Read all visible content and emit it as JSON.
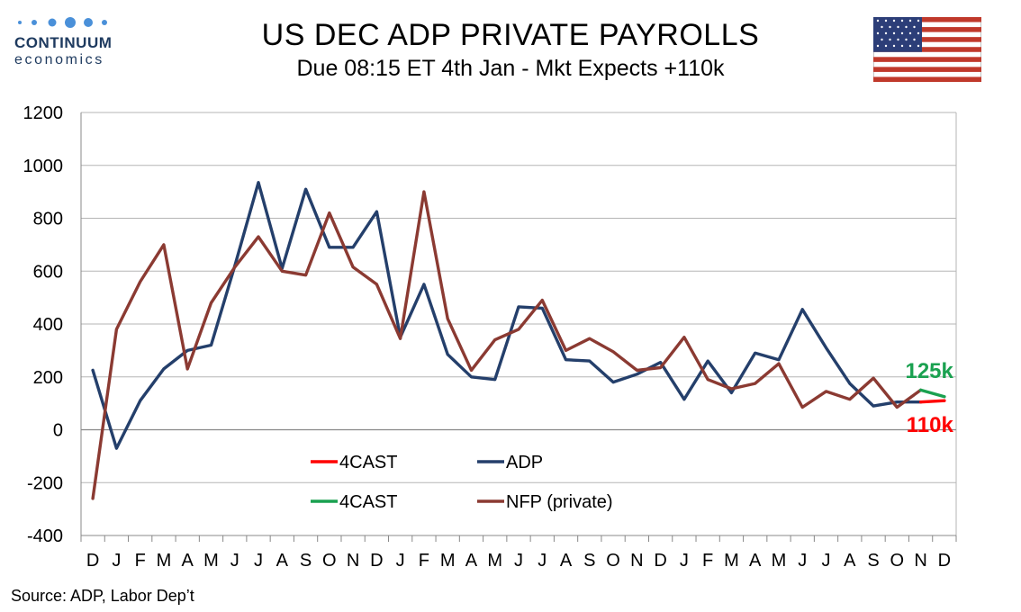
{
  "logo": {
    "name": "CONTINUUM",
    "sub": "economics"
  },
  "title": "US DEC ADP PRIVATE PAYROLLS",
  "subtitle": "Due 08:15 ET 4th Jan - Mkt Expects +110k",
  "source": "Source: ADP, Labor Dep’t",
  "colors": {
    "adp": "#243f6b",
    "nfp": "#8b3a32",
    "forecast_red": "#ff0000",
    "forecast_green": "#1aa150",
    "grid": "#b5b5b5"
  },
  "chart_data": {
    "type": "line",
    "categories": [
      "D",
      "J",
      "F",
      "M",
      "A",
      "M",
      "J",
      "J",
      "A",
      "S",
      "O",
      "N",
      "D",
      "J",
      "F",
      "M",
      "A",
      "M",
      "J",
      "J",
      "A",
      "S",
      "O",
      "N",
      "D",
      "J",
      "F",
      "M",
      "A",
      "M",
      "J",
      "J",
      "A",
      "S",
      "O",
      "N",
      "D"
    ],
    "ylim": [
      -400,
      1200
    ],
    "yticks": [
      -400,
      -200,
      0,
      200,
      400,
      600,
      800,
      1000,
      1200
    ],
    "grid": true,
    "legend_position": "lower-middle",
    "series": [
      {
        "name": "ADP",
        "key": "adp",
        "values": [
          225,
          -70,
          110,
          230,
          300,
          320,
          620,
          935,
          610,
          910,
          690,
          690,
          825,
          350,
          550,
          285,
          200,
          190,
          465,
          460,
          265,
          260,
          180,
          210,
          255,
          115,
          260,
          140,
          290,
          265,
          455,
          310,
          175,
          90,
          105,
          105,
          null
        ]
      },
      {
        "name": "NFP (private)",
        "key": "nfp",
        "values": [
          -260,
          380,
          560,
          700,
          230,
          480,
          615,
          730,
          600,
          585,
          820,
          615,
          550,
          345,
          900,
          420,
          225,
          340,
          380,
          490,
          300,
          345,
          295,
          225,
          235,
          350,
          190,
          155,
          175,
          250,
          85,
          145,
          115,
          195,
          85,
          150,
          null
        ]
      },
      {
        "name": "4CAST",
        "key": "forecast_red",
        "values_at": {
          "35": 105,
          "36": 110
        }
      },
      {
        "name": "4CAST",
        "key": "forecast_green",
        "values_at": {
          "35": 150,
          "36": 125
        }
      }
    ],
    "annotations": [
      {
        "text": "125k",
        "color": "#1aa150",
        "at_index": 36,
        "value": 125
      },
      {
        "text": "110k",
        "color": "#ff0000",
        "at_index": 36,
        "value": 110
      }
    ],
    "legend": [
      {
        "label": "4CAST",
        "key": "forecast_red"
      },
      {
        "label": "ADP",
        "key": "adp"
      },
      {
        "label": "4CAST",
        "key": "forecast_green"
      },
      {
        "label": "NFP (private)",
        "key": "nfp"
      }
    ]
  }
}
